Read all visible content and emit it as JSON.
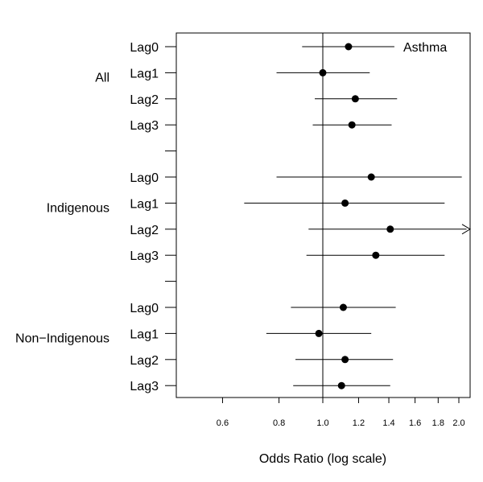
{
  "chart_data": {
    "type": "forest",
    "title": "",
    "annotation": "Asthma",
    "xlabel": "Odds Ratio (log scale)",
    "x_scale": "log",
    "xlim": [
      0.46,
      2.08
    ],
    "x_ticks": [
      0.6,
      0.8,
      1.0,
      1.2,
      1.4,
      1.6,
      1.8,
      2.0
    ],
    "x_tick_labels": [
      "0.6",
      "0.8",
      "1.0",
      "1.2",
      "1.4",
      "1.6",
      "1.8",
      "2.0"
    ],
    "reference_line": 1.0,
    "groups": [
      {
        "name": "All",
        "rows": [
          {
            "label": "Lag0",
            "or": 1.14,
            "lower": 0.9,
            "upper": 1.44
          },
          {
            "label": "Lag1",
            "or": 1.0,
            "lower": 0.79,
            "upper": 1.27
          },
          {
            "label": "Lag2",
            "or": 1.18,
            "lower": 0.96,
            "upper": 1.46
          },
          {
            "label": "Lag3",
            "or": 1.16,
            "lower": 0.95,
            "upper": 1.42
          }
        ]
      },
      {
        "name": "Indigenous",
        "rows": [
          {
            "label": "Lag0",
            "or": 1.28,
            "lower": 0.79,
            "upper": 2.03
          },
          {
            "label": "Lag1",
            "or": 1.12,
            "lower": 0.67,
            "upper": 1.86
          },
          {
            "label": "Lag2",
            "or": 1.41,
            "lower": 0.93,
            "upper": 2.08,
            "upper_truncated": true
          },
          {
            "label": "Lag3",
            "or": 1.31,
            "lower": 0.92,
            "upper": 1.86
          }
        ]
      },
      {
        "name": "Non−Indigenous",
        "rows": [
          {
            "label": "Lag0",
            "or": 1.11,
            "lower": 0.85,
            "upper": 1.45
          },
          {
            "label": "Lag1",
            "or": 0.98,
            "lower": 0.75,
            "upper": 1.28
          },
          {
            "label": "Lag2",
            "or": 1.12,
            "lower": 0.87,
            "upper": 1.43
          },
          {
            "label": "Lag3",
            "or": 1.1,
            "lower": 0.86,
            "upper": 1.41
          }
        ]
      }
    ]
  }
}
